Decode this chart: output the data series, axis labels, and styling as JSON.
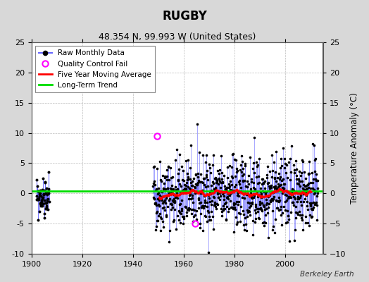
{
  "title": "RUGBY",
  "subtitle": "48.354 N, 99.993 W (United States)",
  "ylabel": "Temperature Anomaly (°C)",
  "attribution": "Berkeley Earth",
  "xlim": [
    1900,
    2015
  ],
  "ylim": [
    -10,
    25
  ],
  "yticks_left": [
    -10,
    -5,
    0,
    5,
    10,
    15,
    20,
    25
  ],
  "yticks_right": [
    -10,
    -5,
    0,
    5,
    10,
    15,
    20,
    25
  ],
  "xticks": [
    1900,
    1920,
    1940,
    1960,
    1980,
    2000
  ],
  "background_color": "#d8d8d8",
  "plot_bg_color": "#ffffff",
  "grid_color": "#bbbbbb",
  "raw_line_color": "#6666ff",
  "raw_dot_color": "#000000",
  "ma_color": "#ff0000",
  "trend_color": "#00dd00",
  "qc_fail_color": "#ff00ff",
  "data_start": 1948,
  "data_end": 2013,
  "early_data_start": 1902,
  "early_data_end": 1907,
  "long_term_trend_y": 0.35,
  "qc_years": [
    1949.5,
    1964.5
  ],
  "qc_vals": [
    9.5,
    -5.0
  ]
}
